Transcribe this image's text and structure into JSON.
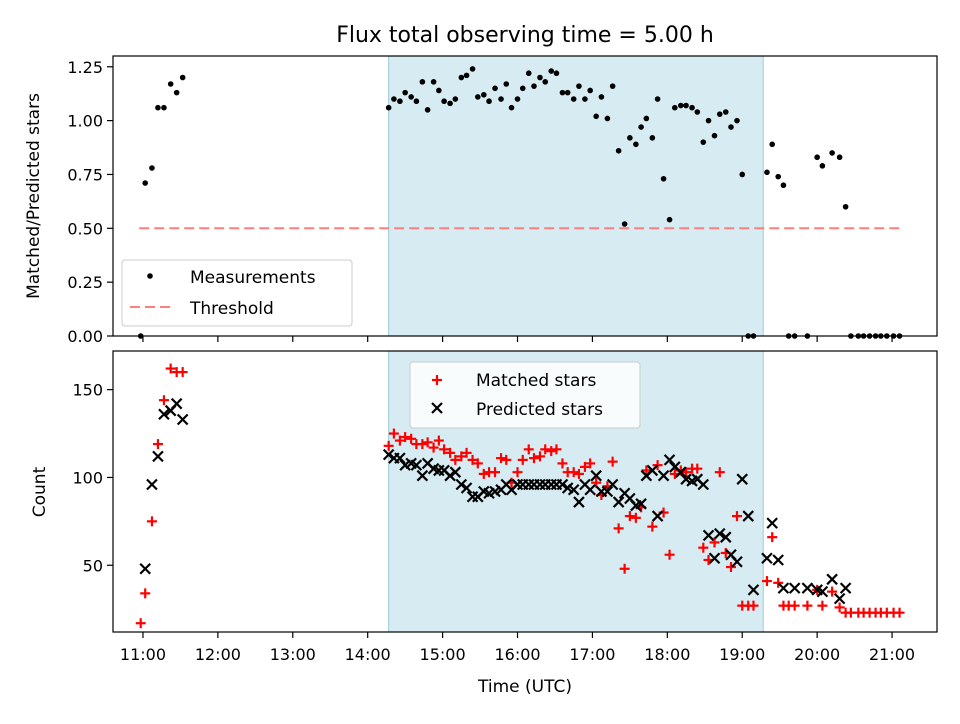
{
  "chart_data": [
    {
      "type": "scatter",
      "title": "Flux total observing time = 5.00 h",
      "xlabel": "",
      "ylabel": "Matched/Predicted stars",
      "ylim": [
        0,
        1.3
      ],
      "xlim": [
        10.6,
        21.6
      ],
      "yticks": [
        0.0,
        0.25,
        0.5,
        0.75,
        1.0,
        1.25
      ],
      "ytick_labels": [
        "0.00",
        "0.25",
        "0.50",
        "0.75",
        "1.00",
        "1.25"
      ],
      "shaded_region": [
        14.28,
        19.28
      ],
      "legend": [
        "Measurements",
        "Threshold"
      ],
      "threshold": {
        "y": 0.5,
        "x": [
          10.95,
          21.1
        ]
      },
      "measurements": [
        [
          10.97,
          0.0
        ],
        [
          11.03,
          0.71
        ],
        [
          11.12,
          0.78
        ],
        [
          11.2,
          1.06
        ],
        [
          11.28,
          1.06
        ],
        [
          11.37,
          1.17
        ],
        [
          11.45,
          1.13
        ],
        [
          11.53,
          1.2
        ],
        [
          14.28,
          1.06
        ],
        [
          14.35,
          1.1
        ],
        [
          14.43,
          1.09
        ],
        [
          14.5,
          1.13
        ],
        [
          14.58,
          1.11
        ],
        [
          14.65,
          1.09
        ],
        [
          14.73,
          1.18
        ],
        [
          14.8,
          1.05
        ],
        [
          14.88,
          1.18
        ],
        [
          14.95,
          1.14
        ],
        [
          15.02,
          1.09
        ],
        [
          15.1,
          1.08
        ],
        [
          15.17,
          1.1
        ],
        [
          15.25,
          1.2
        ],
        [
          15.32,
          1.21
        ],
        [
          15.4,
          1.24
        ],
        [
          15.47,
          1.11
        ],
        [
          15.55,
          1.12
        ],
        [
          15.62,
          1.09
        ],
        [
          15.7,
          1.15
        ],
        [
          15.78,
          1.1
        ],
        [
          15.85,
          1.17
        ],
        [
          15.92,
          1.06
        ],
        [
          16.0,
          1.1
        ],
        [
          16.07,
          1.15
        ],
        [
          16.15,
          1.22
        ],
        [
          16.22,
          1.16
        ],
        [
          16.3,
          1.2
        ],
        [
          16.37,
          1.18
        ],
        [
          16.45,
          1.23
        ],
        [
          16.52,
          1.22
        ],
        [
          16.6,
          1.13
        ],
        [
          16.67,
          1.13
        ],
        [
          16.75,
          1.1
        ],
        [
          16.82,
          1.16
        ],
        [
          16.9,
          1.1
        ],
        [
          16.97,
          1.14
        ],
        [
          17.05,
          1.02
        ],
        [
          17.12,
          1.11
        ],
        [
          17.2,
          1.01
        ],
        [
          17.27,
          1.16
        ],
        [
          17.35,
          0.86
        ],
        [
          17.43,
          0.52
        ],
        [
          17.5,
          0.92
        ],
        [
          17.58,
          0.89
        ],
        [
          17.65,
          0.97
        ],
        [
          17.72,
          1.01
        ],
        [
          17.8,
          0.92
        ],
        [
          17.87,
          1.1
        ],
        [
          17.95,
          0.73
        ],
        [
          18.03,
          0.54
        ],
        [
          18.1,
          1.06
        ],
        [
          18.18,
          1.07
        ],
        [
          18.25,
          1.07
        ],
        [
          18.33,
          1.06
        ],
        [
          18.4,
          1.04
        ],
        [
          18.48,
          0.9
        ],
        [
          18.55,
          1.0
        ],
        [
          18.63,
          0.93
        ],
        [
          18.7,
          1.03
        ],
        [
          18.78,
          1.04
        ],
        [
          18.85,
          0.97
        ],
        [
          18.93,
          1.0
        ],
        [
          19.0,
          0.75
        ],
        [
          19.08,
          0.0
        ],
        [
          19.15,
          0.0
        ],
        [
          19.33,
          0.76
        ],
        [
          19.4,
          0.89
        ],
        [
          19.48,
          0.74
        ],
        [
          19.55,
          0.7
        ],
        [
          19.62,
          0.0
        ],
        [
          19.7,
          0.0
        ],
        [
          19.87,
          0.0
        ],
        [
          20.0,
          0.83
        ],
        [
          20.07,
          0.79
        ],
        [
          20.2,
          0.85
        ],
        [
          20.3,
          0.83
        ],
        [
          20.38,
          0.6
        ],
        [
          20.45,
          0.0
        ],
        [
          20.55,
          0.0
        ],
        [
          20.62,
          0.0
        ],
        [
          20.7,
          0.0
        ],
        [
          20.78,
          0.0
        ],
        [
          20.85,
          0.0
        ],
        [
          20.93,
          0.0
        ],
        [
          21.02,
          0.0
        ],
        [
          21.1,
          0.0
        ]
      ]
    },
    {
      "type": "scatter",
      "title": "",
      "xlabel": "Time (UTC)",
      "ylabel": "Count",
      "ylim": [
        12,
        172
      ],
      "xlim": [
        10.6,
        21.6
      ],
      "yticks": [
        50,
        100,
        150
      ],
      "ytick_labels": [
        "50",
        "100",
        "150"
      ],
      "xticks": [
        11,
        12,
        13,
        14,
        15,
        16,
        17,
        18,
        19,
        20,
        21
      ],
      "xtick_labels": [
        "11:00",
        "12:00",
        "13:00",
        "14:00",
        "15:00",
        "16:00",
        "17:00",
        "18:00",
        "19:00",
        "20:00",
        "21:00"
      ],
      "shaded_region": [
        14.28,
        19.28
      ],
      "legend": [
        "Matched stars",
        "Predicted stars"
      ],
      "series": [
        {
          "name": "Matched stars",
          "points": [
            [
              10.97,
              17
            ],
            [
              11.03,
              34
            ],
            [
              11.12,
              75
            ],
            [
              11.2,
              119
            ],
            [
              11.28,
              144
            ],
            [
              11.37,
              162
            ],
            [
              11.45,
              160
            ],
            [
              11.53,
              160
            ],
            [
              14.28,
              118
            ],
            [
              14.35,
              125
            ],
            [
              14.43,
              121
            ],
            [
              14.5,
              123
            ],
            [
              14.58,
              122
            ],
            [
              14.65,
              119
            ],
            [
              14.73,
              119
            ],
            [
              14.8,
              120
            ],
            [
              14.88,
              117
            ],
            [
              14.95,
              121
            ],
            [
              15.02,
              116
            ],
            [
              15.1,
              114
            ],
            [
              15.17,
              110
            ],
            [
              15.25,
              112
            ],
            [
              15.32,
              114
            ],
            [
              15.4,
              110
            ],
            [
              15.47,
              108
            ],
            [
              15.55,
              102
            ],
            [
              15.62,
              103
            ],
            [
              15.7,
              103
            ],
            [
              15.78,
              111
            ],
            [
              15.85,
              110
            ],
            [
              15.92,
              97
            ],
            [
              16.0,
              103
            ],
            [
              16.07,
              110
            ],
            [
              16.15,
              116
            ],
            [
              16.22,
              111
            ],
            [
              16.3,
              112
            ],
            [
              16.37,
              116
            ],
            [
              16.45,
              115
            ],
            [
              16.52,
              116
            ],
            [
              16.6,
              108
            ],
            [
              16.67,
              103
            ],
            [
              16.75,
              103
            ],
            [
              16.82,
              102
            ],
            [
              16.9,
              106
            ],
            [
              16.97,
              108
            ],
            [
              17.05,
              97
            ],
            [
              17.12,
              90
            ],
            [
              17.2,
              95
            ],
            [
              17.27,
              109
            ],
            [
              17.35,
              71
            ],
            [
              17.43,
              48
            ],
            [
              17.5,
              78
            ],
            [
              17.58,
              77
            ],
            [
              17.65,
              83
            ],
            [
              17.72,
              104
            ],
            [
              17.8,
              72
            ],
            [
              17.87,
              107
            ],
            [
              17.95,
              80
            ],
            [
              18.03,
              56
            ],
            [
              18.1,
              102
            ],
            [
              18.18,
              104
            ],
            [
              18.25,
              103
            ],
            [
              18.33,
              105
            ],
            [
              18.4,
              105
            ],
            [
              18.48,
              60
            ],
            [
              18.55,
              53
            ],
            [
              18.63,
              63
            ],
            [
              18.7,
              103
            ],
            [
              18.78,
              57
            ],
            [
              18.85,
              49
            ],
            [
              18.93,
              78
            ],
            [
              19.0,
              27
            ],
            [
              19.08,
              27
            ],
            [
              19.15,
              27
            ],
            [
              19.33,
              41
            ],
            [
              19.4,
              66
            ],
            [
              19.48,
              40
            ],
            [
              19.55,
              27
            ],
            [
              19.62,
              27
            ],
            [
              19.7,
              27
            ],
            [
              19.87,
              27
            ],
            [
              20.0,
              36
            ],
            [
              20.07,
              27
            ],
            [
              20.2,
              35
            ],
            [
              20.3,
              26
            ],
            [
              20.38,
              23
            ],
            [
              20.45,
              23
            ],
            [
              20.55,
              23
            ],
            [
              20.62,
              23
            ],
            [
              20.7,
              23
            ],
            [
              20.78,
              23
            ],
            [
              20.85,
              23
            ],
            [
              20.93,
              23
            ],
            [
              21.02,
              23
            ],
            [
              21.1,
              23
            ]
          ]
        },
        {
          "name": "Predicted stars",
          "points": [
            [
              11.03,
              48
            ],
            [
              11.12,
              96
            ],
            [
              11.2,
              112
            ],
            [
              11.28,
              136
            ],
            [
              11.37,
              138
            ],
            [
              11.45,
              142
            ],
            [
              11.53,
              133
            ],
            [
              14.28,
              113
            ],
            [
              14.35,
              111
            ],
            [
              14.43,
              111
            ],
            [
              14.5,
              107
            ],
            [
              14.58,
              108
            ],
            [
              14.65,
              107
            ],
            [
              14.73,
              101
            ],
            [
              14.8,
              108
            ],
            [
              14.88,
              105
            ],
            [
              14.95,
              104
            ],
            [
              15.02,
              104
            ],
            [
              15.1,
              101
            ],
            [
              15.17,
              103
            ],
            [
              15.25,
              96
            ],
            [
              15.32,
              94
            ],
            [
              15.4,
              89
            ],
            [
              15.47,
              89
            ],
            [
              15.55,
              92
            ],
            [
              15.62,
              91
            ],
            [
              15.7,
              92
            ],
            [
              15.78,
              93
            ],
            [
              15.85,
              96
            ],
            [
              15.92,
              93
            ],
            [
              16.0,
              96
            ],
            [
              16.07,
              96
            ],
            [
              16.15,
              96
            ],
            [
              16.22,
              96
            ],
            [
              16.3,
              96
            ],
            [
              16.37,
              96
            ],
            [
              16.45,
              96
            ],
            [
              16.52,
              96
            ],
            [
              16.6,
              96
            ],
            [
              16.67,
              94
            ],
            [
              16.75,
              93
            ],
            [
              16.82,
              86
            ],
            [
              16.9,
              96
            ],
            [
              16.97,
              93
            ],
            [
              17.05,
              101
            ],
            [
              17.12,
              92
            ],
            [
              17.2,
              92
            ],
            [
              17.27,
              96
            ],
            [
              17.35,
              86
            ],
            [
              17.43,
              91
            ],
            [
              17.5,
              88
            ],
            [
              17.58,
              84
            ],
            [
              17.65,
              85
            ],
            [
              17.72,
              101
            ],
            [
              17.8,
              104
            ],
            [
              17.87,
              78
            ],
            [
              17.95,
              101
            ],
            [
              18.03,
              110
            ],
            [
              18.1,
              106
            ],
            [
              18.18,
              103
            ],
            [
              18.25,
              99
            ],
            [
              18.33,
              98
            ],
            [
              18.4,
              99
            ],
            [
              18.48,
              96
            ],
            [
              18.55,
              67
            ],
            [
              18.63,
              54
            ],
            [
              18.7,
              68
            ],
            [
              18.78,
              66
            ],
            [
              18.85,
              56
            ],
            [
              18.93,
              52
            ],
            [
              19.0,
              99
            ],
            [
              19.08,
              78
            ],
            [
              19.15,
              36
            ],
            [
              19.33,
              54
            ],
            [
              19.4,
              74
            ],
            [
              19.48,
              53
            ],
            [
              19.55,
              37
            ],
            [
              19.7,
              37
            ],
            [
              19.87,
              37
            ],
            [
              20.0,
              36
            ],
            [
              20.07,
              35
            ],
            [
              20.2,
              42
            ],
            [
              20.3,
              31
            ],
            [
              20.38,
              37
            ]
          ]
        }
      ]
    }
  ]
}
